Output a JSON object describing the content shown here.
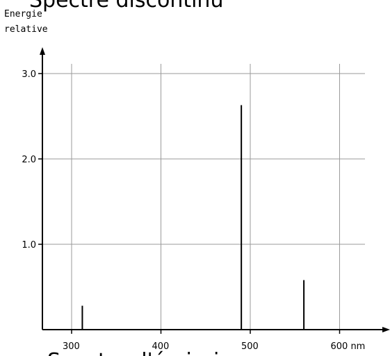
{
  "chart_data": {
    "type": "bar",
    "title": "Spectre discontinu",
    "caption": "Spectre d'émission",
    "ylabel_lines": [
      "Energie",
      "relative"
    ],
    "xlabel": "",
    "x": [
      312,
      490,
      560
    ],
    "values": [
      0.28,
      2.63,
      0.58
    ],
    "xlim": [
      265,
      625
    ],
    "ylim": [
      0,
      3.2
    ],
    "x_ticks": [
      300,
      400,
      500,
      600
    ],
    "x_tick_labels": [
      "300",
      "400",
      "500",
      "600 nm"
    ],
    "y_ticks": [
      1.0,
      2.0,
      3.0
    ],
    "y_tick_labels": [
      "1.0",
      "2.0",
      "3.0"
    ],
    "grid": true,
    "legend": "none"
  }
}
